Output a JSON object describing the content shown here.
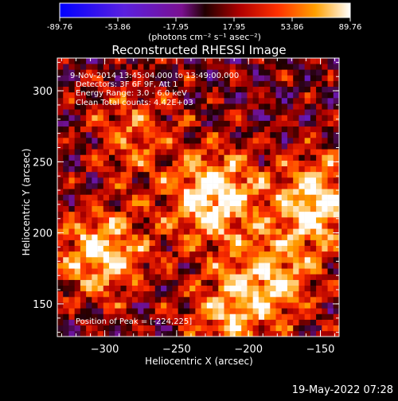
{
  "colorbar": {
    "ticks": [
      "-89.76",
      "-53.86",
      "-17.95",
      "17.95",
      "53.86",
      "89.76"
    ],
    "unit_label": "(photons cm⁻² s⁻¹ asec⁻²)",
    "range": [
      -89.76,
      89.76
    ]
  },
  "title": "Reconstructed RHESSI Image",
  "annotations": {
    "time_range": "9-Nov-2014 13:45:04.000 to 13:49:00.000",
    "detectors": "Detectors: 3F 6F 9F, Att 1",
    "energy": "Energy Range: 3.0 - 6.0 keV",
    "method": "Clean     Total counts: 4.42E+03",
    "peak": "Position of Peak = [-224,225]"
  },
  "footer_date": "19-May-2022 07:28",
  "chart_data": {
    "type": "heatmap",
    "title": "Reconstructed RHESSI Image",
    "xlabel": "Heliocentric X (arcsec)",
    "ylabel": "Heliocentric Y (arcsec)",
    "xlim": [
      -333,
      -137
    ],
    "ylim": [
      127,
      323
    ],
    "x_ticks": [
      {
        "value": -300,
        "label": "−300"
      },
      {
        "value": -250,
        "label": "−250"
      },
      {
        "value": -200,
        "label": "−200"
      },
      {
        "value": -150,
        "label": "−150"
      }
    ],
    "y_ticks": [
      {
        "value": 150,
        "label": "150"
      },
      {
        "value": 200,
        "label": "200"
      },
      {
        "value": 250,
        "label": "250"
      },
      {
        "value": 300,
        "label": "300"
      }
    ],
    "colorscale": "red-temperature",
    "value_range": [
      -89.76,
      89.76
    ],
    "grid_cells": [
      49,
      49
    ],
    "bright_sources": [
      {
        "x": -224,
        "y": 225,
        "value": 89.76
      },
      {
        "x": -151,
        "y": 222,
        "value": 82
      },
      {
        "x": -303,
        "y": 185,
        "value": 78
      },
      {
        "x": -212,
        "y": 145,
        "value": 58
      },
      {
        "x": -280,
        "y": 270,
        "value": 45
      },
      {
        "x": -180,
        "y": 170,
        "value": 55
      }
    ],
    "peak_position": [
      -224,
      225
    ]
  }
}
